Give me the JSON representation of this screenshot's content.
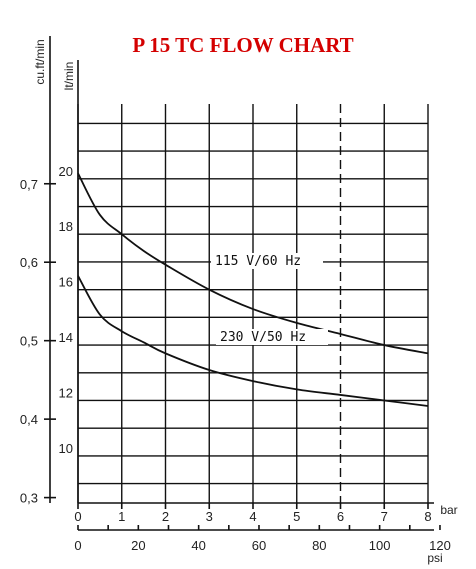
{
  "chart_data": {
    "type": "line",
    "title": "P 15 TC FLOW CHART",
    "y_units": {
      "left_outer": "cu.ft/min",
      "left_inner": "lt/min"
    },
    "x_units": {
      "bar": "bar",
      "psi": "psi"
    },
    "cuft_ticks": [
      "0,3",
      "0,4",
      "0,5",
      "0,6",
      "0,7"
    ],
    "cuft_values": [
      0.3,
      0.4,
      0.5,
      0.6,
      0.7
    ],
    "ltmin_ticks": [
      "10",
      "12",
      "14",
      "16",
      "18",
      "20"
    ],
    "ltmin_values": [
      10,
      12,
      14,
      16,
      18,
      20
    ],
    "bar_ticks": [
      "0",
      "1",
      "2",
      "3",
      "4",
      "5",
      "6",
      "7",
      "8"
    ],
    "bar_values": [
      0,
      1,
      2,
      3,
      4,
      5,
      6,
      7,
      8
    ],
    "psi_ticks": [
      "0",
      "20",
      "40",
      "60",
      "80",
      "100",
      "120"
    ],
    "psi_values": [
      0,
      20,
      40,
      60,
      80,
      100,
      120
    ],
    "xlim": [
      0,
      8
    ],
    "ylim_lt": [
      8.3,
      22.7
    ],
    "max_pressure_line_bar": 6,
    "series": [
      {
        "name": "115 V/60 Hz",
        "x": [
          0,
          0.5,
          1,
          1.5,
          2,
          3,
          4,
          5,
          6,
          7,
          8
        ],
        "y": [
          20.2,
          18.7,
          18.0,
          17.4,
          16.9,
          16.0,
          15.3,
          14.8,
          14.4,
          14.0,
          13.7
        ]
      },
      {
        "name": "230 V/50 Hz",
        "x": [
          0,
          0.5,
          1,
          1.5,
          2,
          3,
          4,
          5,
          6,
          7,
          8
        ],
        "y": [
          16.5,
          15.1,
          14.5,
          14.1,
          13.7,
          13.1,
          12.7,
          12.4,
          12.2,
          12.0,
          11.8
        ]
      }
    ]
  }
}
